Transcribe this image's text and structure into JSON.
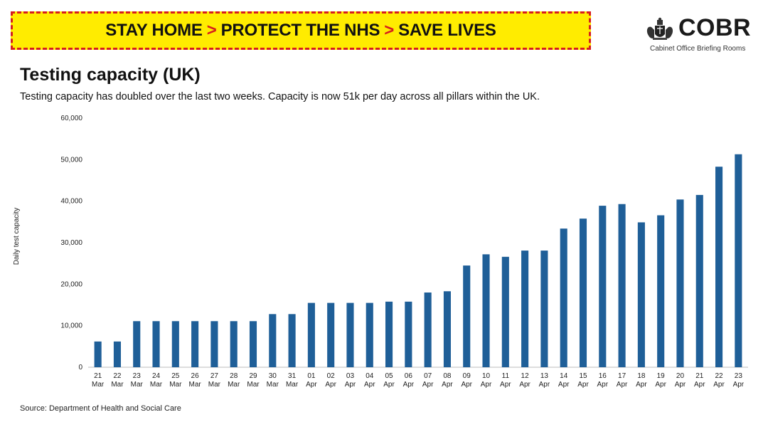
{
  "banner": {
    "part1": "STAY HOME",
    "part2": "PROTECT THE NHS",
    "part3": "SAVE LIVES",
    "separator": ">",
    "background_color": "#ffec00",
    "border_color": "#d61d1d"
  },
  "logo": {
    "text": "COBR",
    "subtitle": "Cabinet Office Briefing Rooms",
    "icon": "royal-crest-icon"
  },
  "header": {
    "title": "Testing capacity (UK)",
    "subtitle": "Testing capacity has doubled over the last two weeks. Capacity is now 51k per day across all pillars within the UK."
  },
  "footer": {
    "source": "Source: Department of Health and Social Care"
  },
  "chart_data": {
    "type": "bar",
    "title": "",
    "xlabel": "",
    "ylabel": "Daily test capacity",
    "ylim": [
      0,
      60000
    ],
    "yticks": [
      "0",
      "10,000",
      "20,000",
      "30,000",
      "40,000",
      "50,000",
      "60,000"
    ],
    "grid": false,
    "bar_color": "#1f5f98",
    "categories": [
      {
        "day": "21",
        "month": "Mar"
      },
      {
        "day": "22",
        "month": "Mar"
      },
      {
        "day": "23",
        "month": "Mar"
      },
      {
        "day": "24",
        "month": "Mar"
      },
      {
        "day": "25",
        "month": "Mar"
      },
      {
        "day": "26",
        "month": "Mar"
      },
      {
        "day": "27",
        "month": "Mar"
      },
      {
        "day": "28",
        "month": "Mar"
      },
      {
        "day": "29",
        "month": "Mar"
      },
      {
        "day": "30",
        "month": "Mar"
      },
      {
        "day": "31",
        "month": "Mar"
      },
      {
        "day": "01",
        "month": "Apr"
      },
      {
        "day": "02",
        "month": "Apr"
      },
      {
        "day": "03",
        "month": "Apr"
      },
      {
        "day": "04",
        "month": "Apr"
      },
      {
        "day": "05",
        "month": "Apr"
      },
      {
        "day": "06",
        "month": "Apr"
      },
      {
        "day": "07",
        "month": "Apr"
      },
      {
        "day": "08",
        "month": "Apr"
      },
      {
        "day": "09",
        "month": "Apr"
      },
      {
        "day": "10",
        "month": "Apr"
      },
      {
        "day": "11",
        "month": "Apr"
      },
      {
        "day": "12",
        "month": "Apr"
      },
      {
        "day": "13",
        "month": "Apr"
      },
      {
        "day": "14",
        "month": "Apr"
      },
      {
        "day": "15",
        "month": "Apr"
      },
      {
        "day": "16",
        "month": "Apr"
      },
      {
        "day": "17",
        "month": "Apr"
      },
      {
        "day": "18",
        "month": "Apr"
      },
      {
        "day": "19",
        "month": "Apr"
      },
      {
        "day": "20",
        "month": "Apr"
      },
      {
        "day": "21",
        "month": "Apr"
      },
      {
        "day": "22",
        "month": "Apr"
      },
      {
        "day": "23",
        "month": "Apr"
      }
    ],
    "values": [
      6200,
      6200,
      11100,
      11100,
      11100,
      11100,
      11100,
      11100,
      11100,
      12800,
      12800,
      15500,
      15500,
      15500,
      15500,
      15800,
      15800,
      18000,
      18300,
      24500,
      27200,
      26600,
      28100,
      28100,
      33400,
      35800,
      38900,
      39300,
      34900,
      36600,
      40400,
      41500,
      48300,
      51300
    ]
  }
}
